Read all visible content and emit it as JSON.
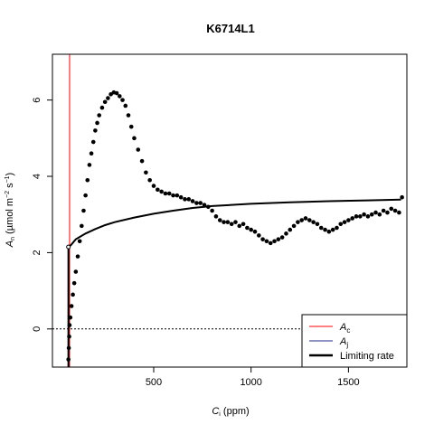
{
  "chart_data": {
    "type": "scatter",
    "title": "K6714L1",
    "xlabel": "C_i (ppm)",
    "ylabel": "A_n (µmol m^-2 s^-1)",
    "xlim": [
      -20,
      1800
    ],
    "ylim": [
      -1,
      7.2
    ],
    "x_ticks": [
      500,
      1000,
      1500
    ],
    "x_tick_labels": [
      "500",
      "1000",
      "1500"
    ],
    "y_ticks": [
      0,
      2,
      4,
      6
    ],
    "y_tick_labels": [
      "0",
      "2",
      "4",
      "6"
    ],
    "reference_line": {
      "y": 0,
      "style": "dotted"
    },
    "ac_line": {
      "name": "A_c",
      "x": 68,
      "color": "#ff0000"
    },
    "limiting_rate_curve": {
      "name": "Limiting rate",
      "points": [
        [
          62,
          2.15
        ],
        [
          75,
          2.2
        ],
        [
          100,
          2.35
        ],
        [
          150,
          2.5
        ],
        [
          200,
          2.62
        ],
        [
          250,
          2.72
        ],
        [
          300,
          2.8
        ],
        [
          400,
          2.92
        ],
        [
          500,
          3.02
        ],
        [
          600,
          3.1
        ],
        [
          700,
          3.17
        ],
        [
          800,
          3.22
        ],
        [
          1000,
          3.28
        ],
        [
          1200,
          3.32
        ],
        [
          1400,
          3.35
        ],
        [
          1600,
          3.37
        ],
        [
          1770,
          3.39
        ]
      ]
    },
    "observed_points": [
      [
        62,
        -0.8
      ],
      [
        64,
        -0.5
      ],
      [
        66,
        -0.2
      ],
      [
        68,
        0.1
      ],
      [
        72,
        0.3
      ],
      [
        78,
        0.6
      ],
      [
        85,
        0.9
      ],
      [
        92,
        1.2
      ],
      [
        100,
        1.5
      ],
      [
        110,
        1.9
      ],
      [
        120,
        2.3
      ],
      [
        130,
        2.7
      ],
      [
        140,
        3.1
      ],
      [
        150,
        3.5
      ],
      [
        160,
        3.9
      ],
      [
        170,
        4.3
      ],
      [
        180,
        4.6
      ],
      [
        190,
        4.9
      ],
      [
        200,
        5.2
      ],
      [
        210,
        5.4
      ],
      [
        220,
        5.6
      ],
      [
        235,
        5.8
      ],
      [
        250,
        5.95
      ],
      [
        265,
        6.05
      ],
      [
        280,
        6.15
      ],
      [
        295,
        6.2
      ],
      [
        310,
        6.18
      ],
      [
        325,
        6.1
      ],
      [
        340,
        6.0
      ],
      [
        355,
        5.85
      ],
      [
        370,
        5.6
      ],
      [
        385,
        5.3
      ],
      [
        400,
        5.0
      ],
      [
        420,
        4.7
      ],
      [
        440,
        4.4
      ],
      [
        460,
        4.1
      ],
      [
        480,
        3.9
      ],
      [
        500,
        3.75
      ],
      [
        520,
        3.65
      ],
      [
        540,
        3.6
      ],
      [
        560,
        3.55
      ],
      [
        580,
        3.55
      ],
      [
        600,
        3.5
      ],
      [
        620,
        3.5
      ],
      [
        640,
        3.45
      ],
      [
        660,
        3.4
      ],
      [
        680,
        3.4
      ],
      [
        700,
        3.35
      ],
      [
        720,
        3.3
      ],
      [
        740,
        3.3
      ],
      [
        760,
        3.25
      ],
      [
        780,
        3.2
      ],
      [
        800,
        3.1
      ],
      [
        820,
        2.95
      ],
      [
        840,
        2.85
      ],
      [
        860,
        2.8
      ],
      [
        880,
        2.8
      ],
      [
        900,
        2.75
      ],
      [
        920,
        2.8
      ],
      [
        940,
        2.7
      ],
      [
        960,
        2.75
      ],
      [
        980,
        2.65
      ],
      [
        1000,
        2.6
      ],
      [
        1020,
        2.55
      ],
      [
        1040,
        2.45
      ],
      [
        1060,
        2.35
      ],
      [
        1080,
        2.3
      ],
      [
        1100,
        2.25
      ],
      [
        1120,
        2.3
      ],
      [
        1140,
        2.35
      ],
      [
        1160,
        2.4
      ],
      [
        1180,
        2.5
      ],
      [
        1200,
        2.6
      ],
      [
        1220,
        2.7
      ],
      [
        1240,
        2.8
      ],
      [
        1260,
        2.85
      ],
      [
        1280,
        2.9
      ],
      [
        1300,
        2.85
      ],
      [
        1320,
        2.8
      ],
      [
        1340,
        2.75
      ],
      [
        1360,
        2.65
      ],
      [
        1380,
        2.6
      ],
      [
        1400,
        2.55
      ],
      [
        1420,
        2.6
      ],
      [
        1440,
        2.65
      ],
      [
        1460,
        2.75
      ],
      [
        1480,
        2.8
      ],
      [
        1500,
        2.85
      ],
      [
        1520,
        2.9
      ],
      [
        1540,
        2.95
      ],
      [
        1560,
        2.95
      ],
      [
        1580,
        3.0
      ],
      [
        1600,
        2.95
      ],
      [
        1620,
        3.0
      ],
      [
        1640,
        3.05
      ],
      [
        1660,
        3.0
      ],
      [
        1680,
        3.1
      ],
      [
        1700,
        3.05
      ],
      [
        1720,
        3.15
      ],
      [
        1740,
        3.1
      ],
      [
        1760,
        3.05
      ],
      [
        1775,
        3.45
      ]
    ],
    "legend": {
      "position": "bottom-right",
      "items": [
        {
          "label": "A_c",
          "color": "#ff0000",
          "width": 1
        },
        {
          "label": "A_j",
          "color": "#1f2a8a",
          "width": 1
        },
        {
          "label": "Limiting rate",
          "color": "#000000",
          "width": 2.5
        }
      ]
    }
  }
}
